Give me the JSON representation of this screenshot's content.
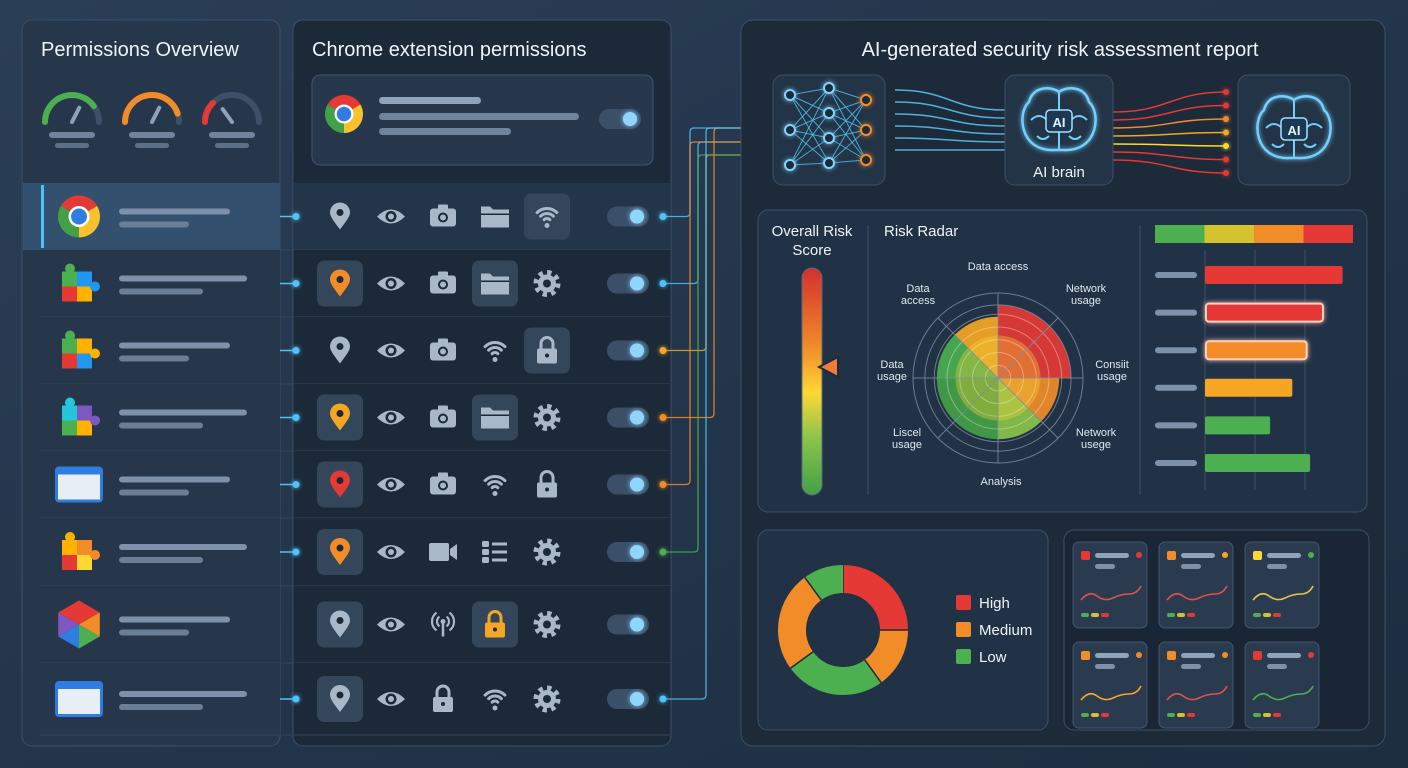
{
  "overview": {
    "title": "Permissions Overview",
    "gauges": [
      {
        "color": "#4caf50",
        "level": 0.8
      },
      {
        "color": "#f28c28",
        "level": 0.9
      },
      {
        "color": "#e53935",
        "level": 0.25
      }
    ]
  },
  "permissions": {
    "title": "Chrome extension permissions",
    "header_card": {
      "icon": "chrome-icon",
      "toggle_on": true
    }
  },
  "extensions": [
    {
      "icon": "chrome-icon",
      "selected": true,
      "perms": [
        {
          "i": "pin"
        },
        {
          "i": "eye"
        },
        {
          "i": "camera"
        },
        {
          "i": "folder"
        },
        {
          "i": "wifi",
          "hl": true
        }
      ],
      "link": "#4fc3f7"
    },
    {
      "icon": "puzzle-icon",
      "colors": [
        "#4caf50",
        "#2196f3",
        "#e53935",
        "#ffb300"
      ],
      "perms": [
        {
          "i": "pin",
          "hl": true,
          "c": "#f28c28"
        },
        {
          "i": "eye"
        },
        {
          "i": "camera"
        },
        {
          "i": "folder",
          "hl": true
        },
        {
          "i": "gear"
        }
      ],
      "link": "#4fc3f7"
    },
    {
      "icon": "puzzle-icon",
      "colors": [
        "#4caf50",
        "#ffb300",
        "#e53935",
        "#2196f3"
      ],
      "perms": [
        {
          "i": "pin"
        },
        {
          "i": "eye"
        },
        {
          "i": "camera"
        },
        {
          "i": "wifi"
        },
        {
          "i": "lock",
          "hl": true
        }
      ],
      "link": "#f5a623"
    },
    {
      "icon": "puzzle-icon",
      "colors": [
        "#26c6da",
        "#7e57c2",
        "#4caf50",
        "#ffb300"
      ],
      "perms": [
        {
          "i": "pin",
          "hl": true,
          "c": "#f5a623"
        },
        {
          "i": "eye"
        },
        {
          "i": "camera"
        },
        {
          "i": "folder",
          "hl": true
        },
        {
          "i": "gear"
        }
      ],
      "link": "#f28c28"
    },
    {
      "icon": "browser-window-icon",
      "perms": [
        {
          "i": "pin",
          "hl": true,
          "c": "#e53935"
        },
        {
          "i": "eye"
        },
        {
          "i": "camera"
        },
        {
          "i": "wifi"
        },
        {
          "i": "lock"
        }
      ],
      "link": "#f28c28"
    },
    {
      "icon": "puzzle-icon",
      "colors": [
        "#ffb300",
        "#f28c28",
        "#e53935",
        "#fdd835"
      ],
      "perms": [
        {
          "i": "pin",
          "hl": true,
          "c": "#f28c28"
        },
        {
          "i": "eye"
        },
        {
          "i": "video"
        },
        {
          "i": "list"
        },
        {
          "i": "gear"
        }
      ],
      "link": "#4caf50"
    },
    {
      "icon": "hexagon-logo-icon",
      "perms": [
        {
          "i": "pin",
          "hl": true
        },
        {
          "i": "eye"
        },
        {
          "i": "antenna"
        },
        {
          "i": "lock",
          "hl": true,
          "c": "#f5a623"
        },
        {
          "i": "gear"
        }
      ],
      "link": null
    },
    {
      "icon": "browser-window-icon",
      "perms": [
        {
          "i": "pin",
          "hl": true
        },
        {
          "i": "eye"
        },
        {
          "i": "lock"
        },
        {
          "i": "wifi"
        },
        {
          "i": "gear"
        }
      ],
      "link": "#4fc3f7"
    }
  ],
  "report": {
    "title": "AI-generated security risk assessment report",
    "ai_brain_label": "AI brain",
    "ai_chip_text": "AI",
    "risk_score": {
      "title_line1": "Overall Risk",
      "title_line2": "Score",
      "level": 0.56
    },
    "radar": {
      "title": "Risk Radar",
      "labels": {
        "top": "Data access",
        "top_left_1": "Data",
        "top_left_2": "access",
        "top_right_1": "Network",
        "top_right_2": "usage",
        "left_1": "Data",
        "left_2": "usage",
        "right_1": "Consiit",
        "right_2": "usage",
        "bottom_left_1": "Liscel",
        "bottom_left_2": "usage",
        "bottom_right_1": "Network",
        "bottom_right_2": "usege",
        "bottom": "Analysis"
      },
      "sectors": [
        {
          "level": 0.86,
          "color": "#e53935"
        },
        {
          "level": 0.86,
          "color": "#e53935"
        },
        {
          "level": 0.72,
          "color": "#f28c28"
        },
        {
          "level": 0.72,
          "color": "#8bc34a"
        },
        {
          "level": 0.72,
          "color": "#43a047"
        },
        {
          "level": 0.72,
          "color": "#43a047"
        },
        {
          "level": 0.72,
          "color": "#4caf50"
        },
        {
          "level": 0.72,
          "color": "#f5a623"
        }
      ]
    },
    "severity_scale": [
      "#4caf50",
      "#d4c22e",
      "#f28c28",
      "#e53935"
    ],
    "risk_bars": [
      {
        "level": 0.93,
        "color": "#e53935",
        "outline": false
      },
      {
        "level": 0.79,
        "color": "#e53935",
        "outline": true
      },
      {
        "level": 0.68,
        "color": "#f28c28",
        "outline": true
      },
      {
        "level": 0.59,
        "color": "#f5a623",
        "outline": false
      },
      {
        "level": 0.44,
        "color": "#4caf50",
        "outline": false
      },
      {
        "level": 0.71,
        "color": "#4caf50",
        "outline": false
      }
    ],
    "donut": {
      "segments": [
        {
          "label": "High",
          "value": 25,
          "color": "#e53935"
        },
        {
          "label": "Medium",
          "value": 15,
          "color": "#f28c28"
        },
        {
          "label": "Low",
          "value": 25,
          "color": "#4caf50"
        },
        {
          "label": "Medium",
          "value": 25,
          "color": "#f28c28"
        },
        {
          "label": "Low",
          "value": 10,
          "color": "#4caf50"
        }
      ],
      "legend": [
        {
          "label": "High",
          "color": "#e53935"
        },
        {
          "label": "Medium",
          "color": "#f28c28"
        },
        {
          "label": "Low",
          "color": "#4caf50"
        }
      ]
    },
    "mini_cards": [
      {
        "badge": "#e53935",
        "dot": "#e53935",
        "line": "#e0504a"
      },
      {
        "badge": "#f28c28",
        "dot": "#f5a623",
        "line": "#e0504a"
      },
      {
        "badge": "#fdd835",
        "dot": "#4caf50",
        "line": "#e8c547"
      },
      {
        "badge": "#f28c28",
        "dot": "#f28c28",
        "line": "#f5a623"
      },
      {
        "badge": "#f28c28",
        "dot": "#f28c28",
        "line": "#e0504a"
      },
      {
        "badge": "#e53935",
        "dot": "#e53935",
        "line": "#4caf50"
      }
    ]
  }
}
